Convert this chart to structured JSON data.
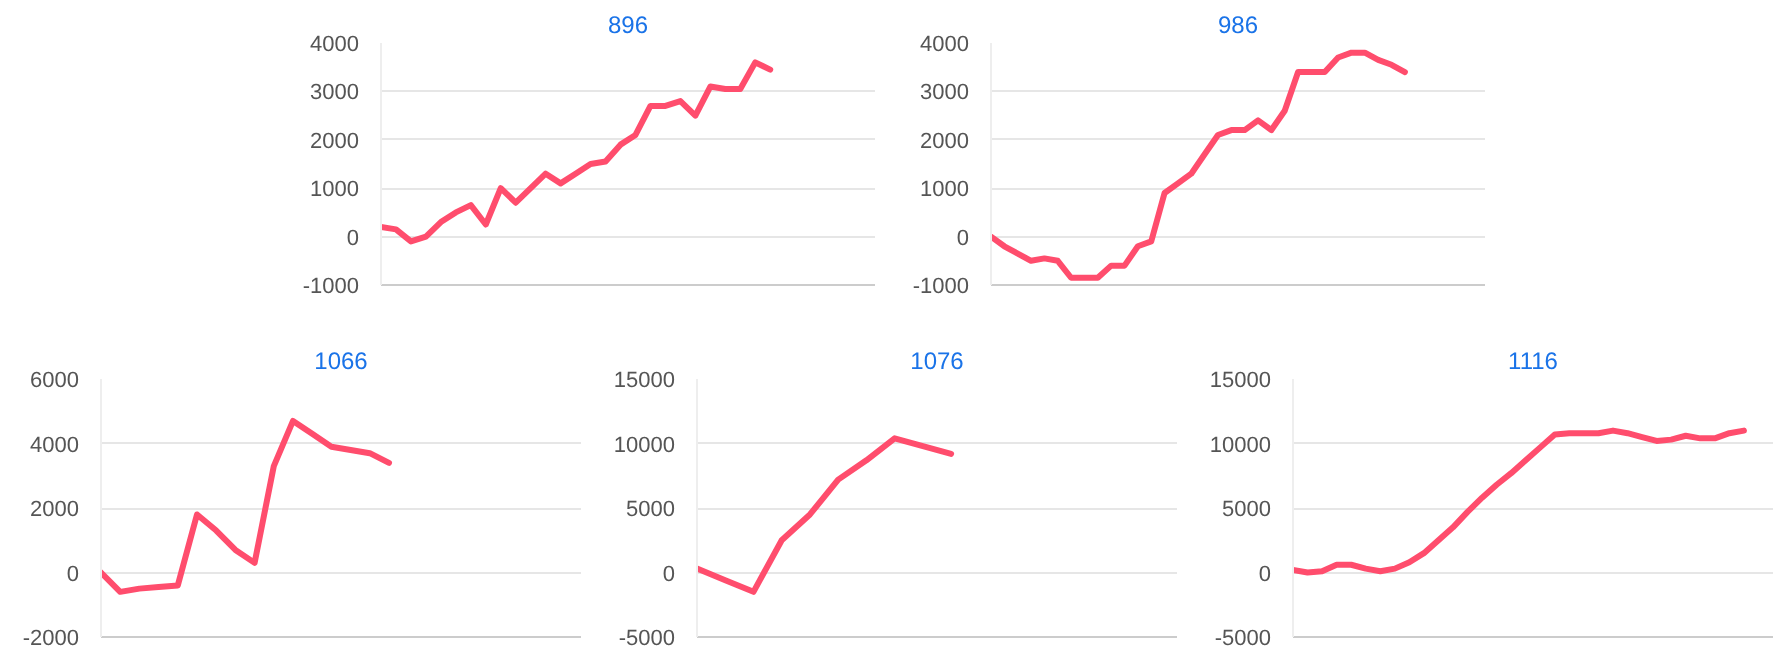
{
  "chart_data": [
    {
      "type": "line",
      "title": "896",
      "categories": [
        null,
        null,
        null,
        null,
        null,
        null,
        null,
        null,
        null,
        null,
        null,
        null,
        null,
        null,
        null,
        null,
        null,
        null,
        null,
        null,
        null,
        null,
        null,
        null,
        null,
        null,
        null,
        null,
        null,
        null,
        null,
        null,
        null,
        null
      ],
      "values": [
        200,
        150,
        -100,
        0,
        300,
        500,
        650,
        250,
        1000,
        700,
        1000,
        1300,
        1100,
        1300,
        1500,
        1550,
        1900,
        2100,
        2700,
        2700,
        2800,
        2500,
        3100,
        3050,
        3050,
        3600,
        3450,
        null,
        null,
        null,
        null,
        null,
        null,
        null
      ],
      "color": "#ff4d6d",
      "ylim": [
        -1000,
        4000
      ],
      "yticks": [
        -1000,
        0,
        1000,
        2000,
        3000,
        4000
      ],
      "grid": "y",
      "tick_labels": "y"
    },
    {
      "type": "line",
      "title": "986",
      "categories": [
        null,
        null,
        null,
        null,
        null,
        null,
        null,
        null,
        null,
        null,
        null,
        null,
        null,
        null,
        null,
        null,
        null,
        null,
        null,
        null,
        null,
        null,
        null,
        null,
        null,
        null,
        null,
        null,
        null,
        null,
        null,
        null,
        null,
        null,
        null,
        null,
        null,
        null
      ],
      "values": [
        0,
        -200,
        -350,
        -500,
        -450,
        -500,
        -850,
        -850,
        -850,
        -600,
        -600,
        -200,
        -100,
        900,
        1100,
        1300,
        1700,
        2100,
        2200,
        2200,
        2400,
        2200,
        2600,
        3400,
        3400,
        3400,
        3700,
        3800,
        3800,
        3650,
        3550,
        3400,
        null,
        null,
        null,
        null,
        null,
        null
      ],
      "color": "#ff4d6d",
      "ylim": [
        -1000,
        4000
      ],
      "yticks": [
        -1000,
        0,
        1000,
        2000,
        3000,
        4000
      ],
      "grid": "y",
      "tick_labels": "y"
    },
    {
      "type": "line",
      "title": "1066",
      "categories": [
        null,
        null,
        null,
        null,
        null,
        null,
        null,
        null,
        null,
        null,
        null,
        null,
        null,
        null,
        null,
        null,
        null,
        null,
        null,
        null,
        null,
        null,
        null,
        null,
        null,
        null
      ],
      "values": [
        0,
        -600,
        -500,
        -450,
        -400,
        1800,
        1300,
        700,
        300,
        3300,
        4700,
        4300,
        3900,
        3800,
        3700,
        3400,
        null,
        null,
        null,
        null,
        null,
        null,
        null,
        null,
        null,
        null
      ],
      "color": "#ff4d6d",
      "ylim": [
        -2000,
        6000
      ],
      "yticks": [
        -2000,
        0,
        2000,
        4000,
        6000
      ],
      "grid": "y",
      "tick_labels": "y"
    },
    {
      "type": "line",
      "title": "1076",
      "categories": [
        null,
        null,
        null,
        null,
        null,
        null,
        null,
        null,
        null,
        null,
        null,
        null,
        null,
        null,
        null,
        null,
        null,
        null
      ],
      "values": [
        300,
        -600,
        -1500,
        2500,
        4500,
        7200,
        8700,
        10400,
        9800,
        9200,
        null,
        null,
        null,
        null,
        null,
        null,
        null,
        null
      ],
      "color": "#ff4d6d",
      "ylim": [
        -5000,
        15000
      ],
      "yticks": [
        -5000,
        0,
        5000,
        10000,
        15000
      ],
      "grid": "y",
      "tick_labels": "y"
    },
    {
      "type": "line",
      "title": "1116",
      "categories": [
        null,
        null,
        null,
        null,
        null,
        null,
        null,
        null,
        null,
        null,
        null,
        null,
        null,
        null,
        null,
        null,
        null,
        null,
        null,
        null,
        null,
        null,
        null,
        null,
        null,
        null,
        null,
        null,
        null,
        null,
        null,
        null,
        null,
        null
      ],
      "values": [
        200,
        0,
        100,
        600,
        600,
        300,
        100,
        300,
        800,
        1500,
        2500,
        3500,
        4700,
        5800,
        6800,
        7700,
        8700,
        9700,
        10700,
        10800,
        10800,
        10800,
        11000,
        10800,
        10500,
        10200,
        10300,
        10600,
        10400,
        10400,
        10800,
        11000,
        null,
        null
      ],
      "color": "#ff4d6d",
      "ylim": [
        -5000,
        15000
      ],
      "yticks": [
        -5000,
        0,
        5000,
        10000,
        15000
      ],
      "grid": "y",
      "tick_labels": "y"
    }
  ]
}
